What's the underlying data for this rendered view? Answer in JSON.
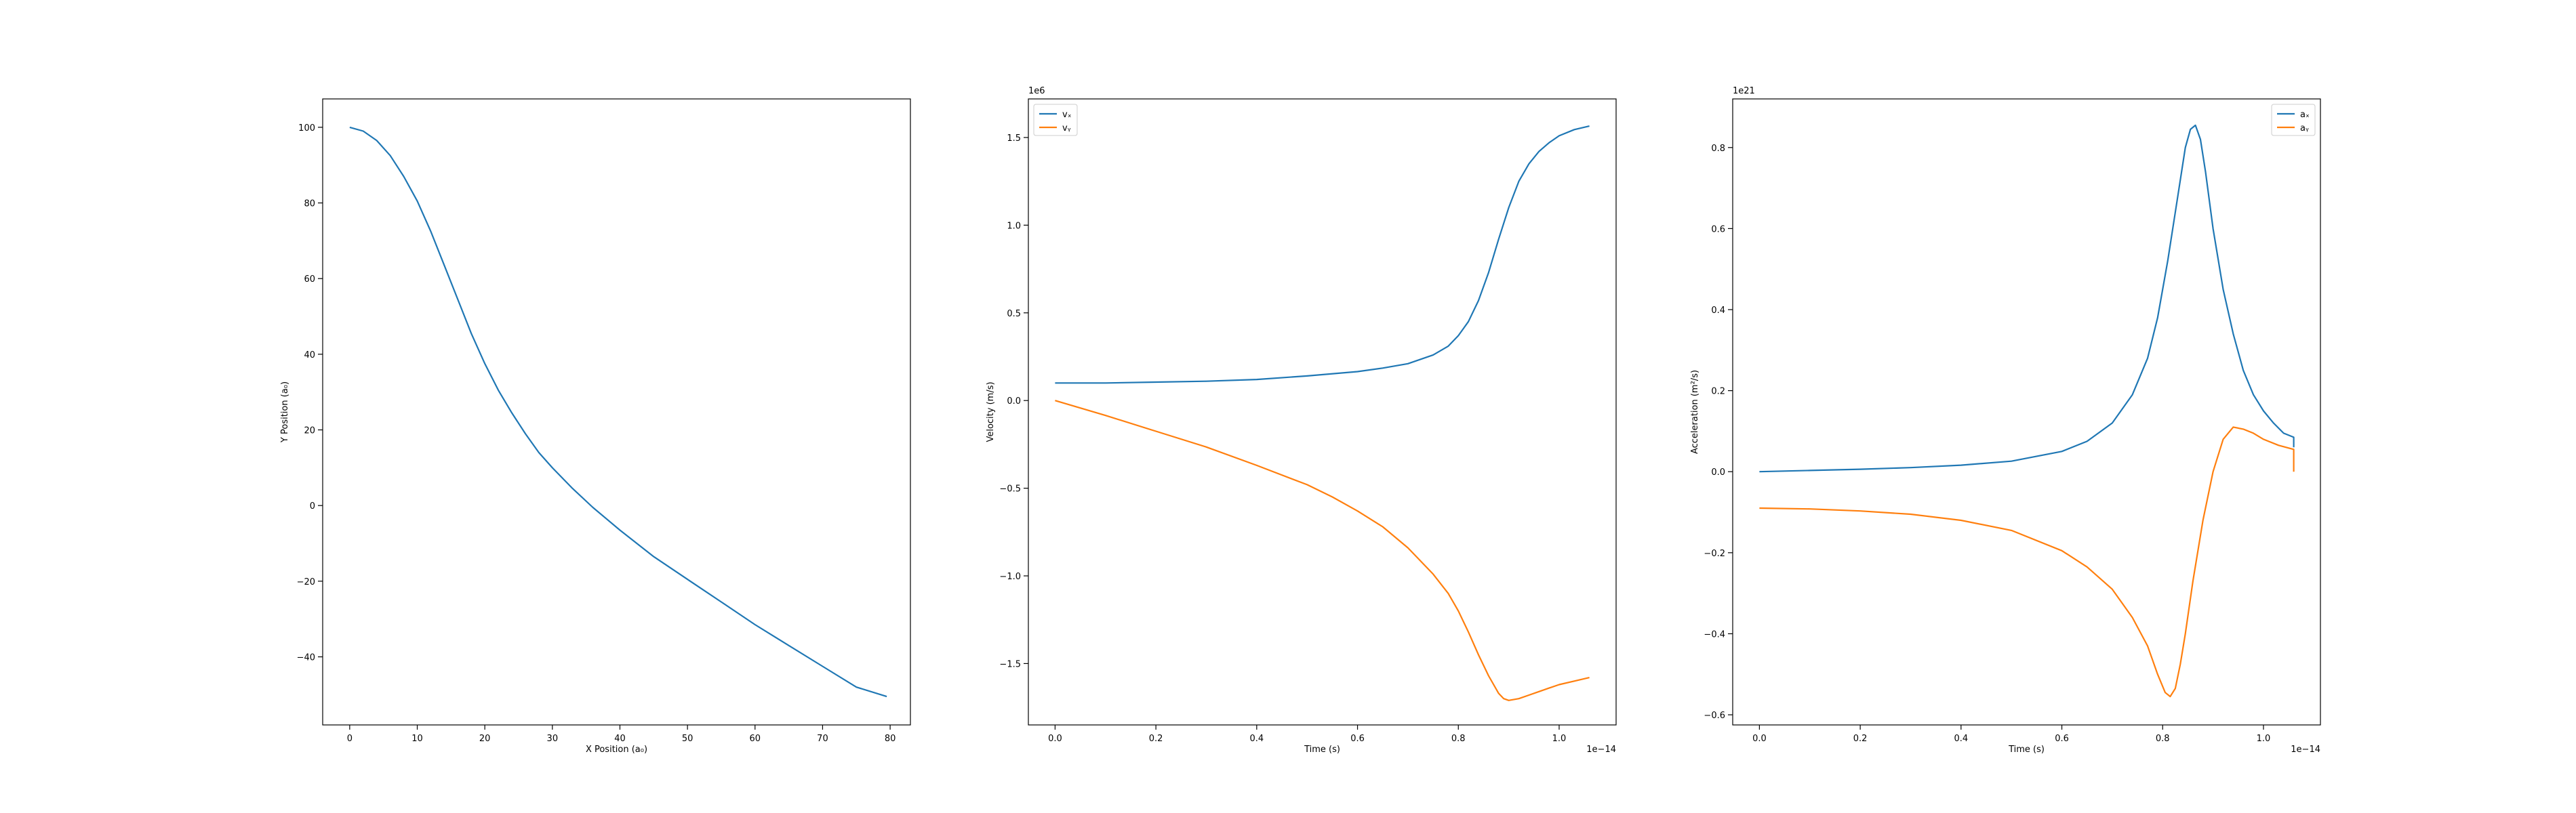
{
  "figure": {
    "background": "#ffffff"
  },
  "colors": {
    "blue": "#1f77b4",
    "orange": "#ff7f0e",
    "axis": "#000000"
  },
  "chart_data": [
    {
      "type": "line",
      "xlabel": "X Position (a₀)",
      "ylabel": "Y Position (a₀)",
      "xlim": [
        -4,
        83
      ],
      "ylim": [
        -58,
        107.5
      ],
      "xticks": [
        0,
        10,
        20,
        30,
        40,
        50,
        60,
        70,
        80
      ],
      "yticks": [
        -40,
        -20,
        0,
        20,
        40,
        60,
        80,
        100
      ],
      "xtick_labels": [
        "0",
        "10",
        "20",
        "30",
        "40",
        "50",
        "60",
        "70",
        "80"
      ],
      "ytick_labels": [
        "−40",
        "−20",
        "0",
        "20",
        "40",
        "60",
        "80",
        "100"
      ],
      "x_offset": "",
      "y_offset": "",
      "legend": [],
      "series": [
        {
          "color": "#1f77b4",
          "x": [
            0.0,
            2.0,
            4.0,
            6.0,
            8.0,
            10.0,
            12.0,
            14.0,
            16.0,
            18.0,
            20.0,
            22.0,
            24.0,
            26.0,
            28.0,
            30.0,
            33.0,
            36.0,
            40.0,
            45.0,
            50.0,
            55.0,
            60.0,
            65.0,
            70.0,
            75.0,
            79.5
          ],
          "y": [
            100.0,
            99.0,
            96.5,
            92.5,
            87.0,
            80.5,
            72.5,
            63.5,
            54.5,
            45.5,
            37.5,
            30.5,
            24.5,
            19.0,
            14.0,
            10.0,
            4.5,
            -0.5,
            -6.5,
            -13.5,
            -19.5,
            -25.5,
            -31.5,
            -37.0,
            -42.5,
            -48.0,
            -50.5
          ]
        }
      ]
    },
    {
      "type": "line",
      "xlabel": "Time (s)",
      "ylabel": "Velocity (m/s)",
      "xlim": [
        -0.053,
        1.113
      ],
      "ylim": [
        -1.85,
        1.72
      ],
      "xticks": [
        0.0,
        0.2,
        0.4,
        0.6,
        0.8,
        1.0
      ],
      "yticks": [
        -1.5,
        -1.0,
        -0.5,
        0.0,
        0.5,
        1.0,
        1.5
      ],
      "xtick_labels": [
        "0.0",
        "0.2",
        "0.4",
        "0.6",
        "0.8",
        "1.0"
      ],
      "ytick_labels": [
        "−1.5",
        "−1.0",
        "−0.5",
        "0.0",
        "0.5",
        "1.0",
        "1.5"
      ],
      "x_offset": "1e−14",
      "y_offset": "1e6",
      "legend": [
        "vₓ",
        "vᵧ"
      ],
      "series": [
        {
          "name": "vₓ",
          "color": "#1f77b4",
          "x": [
            0.0,
            0.1,
            0.2,
            0.3,
            0.4,
            0.5,
            0.6,
            0.65,
            0.7,
            0.75,
            0.78,
            0.8,
            0.82,
            0.84,
            0.86,
            0.88,
            0.9,
            0.92,
            0.94,
            0.96,
            0.98,
            1.0,
            1.03,
            1.06
          ],
          "y": [
            0.1,
            0.1,
            0.105,
            0.11,
            0.12,
            0.14,
            0.165,
            0.185,
            0.21,
            0.26,
            0.31,
            0.37,
            0.45,
            0.57,
            0.73,
            0.92,
            1.1,
            1.25,
            1.35,
            1.42,
            1.47,
            1.51,
            1.545,
            1.565
          ]
        },
        {
          "name": "vᵧ",
          "color": "#ff7f0e",
          "x": [
            0.0,
            0.1,
            0.2,
            0.3,
            0.4,
            0.5,
            0.55,
            0.6,
            0.65,
            0.7,
            0.75,
            0.78,
            0.8,
            0.82,
            0.84,
            0.86,
            0.88,
            0.89,
            0.9,
            0.92,
            0.94,
            0.96,
            0.98,
            1.0,
            1.03,
            1.06
          ],
          "y": [
            0.0,
            -0.085,
            -0.175,
            -0.265,
            -0.37,
            -0.48,
            -0.55,
            -0.63,
            -0.72,
            -0.84,
            -0.99,
            -1.1,
            -1.2,
            -1.32,
            -1.45,
            -1.57,
            -1.67,
            -1.7,
            -1.71,
            -1.7,
            -1.68,
            -1.66,
            -1.64,
            -1.62,
            -1.6,
            -1.58
          ]
        }
      ]
    },
    {
      "type": "line",
      "xlabel": "Time (s)",
      "ylabel": "Acceleration (m²/s)",
      "xlim": [
        -0.053,
        1.113
      ],
      "ylim": [
        -0.625,
        0.92
      ],
      "xticks": [
        0.0,
        0.2,
        0.4,
        0.6,
        0.8,
        1.0
      ],
      "yticks": [
        -0.6,
        -0.4,
        -0.2,
        0.0,
        0.2,
        0.4,
        0.6,
        0.8
      ],
      "xtick_labels": [
        "0.0",
        "0.2",
        "0.4",
        "0.6",
        "0.8",
        "1.0"
      ],
      "ytick_labels": [
        "−0.6",
        "−0.4",
        "−0.2",
        "0.0",
        "0.2",
        "0.4",
        "0.6",
        "0.8"
      ],
      "x_offset": "1e−14",
      "y_offset": "1e21",
      "legend": [
        "aₓ",
        "aᵧ"
      ],
      "series": [
        {
          "name": "aₓ",
          "color": "#1f77b4",
          "x": [
            0.0,
            0.1,
            0.2,
            0.3,
            0.4,
            0.5,
            0.6,
            0.65,
            0.7,
            0.74,
            0.77,
            0.79,
            0.81,
            0.83,
            0.845,
            0.855,
            0.865,
            0.875,
            0.885,
            0.9,
            0.92,
            0.94,
            0.96,
            0.98,
            1.0,
            1.02,
            1.04,
            1.06,
            1.06
          ],
          "y": [
            0.0,
            0.003,
            0.006,
            0.01,
            0.016,
            0.026,
            0.05,
            0.075,
            0.12,
            0.19,
            0.28,
            0.38,
            0.52,
            0.68,
            0.8,
            0.845,
            0.855,
            0.82,
            0.74,
            0.6,
            0.45,
            0.34,
            0.25,
            0.19,
            0.15,
            0.12,
            0.095,
            0.085,
            0.06
          ]
        },
        {
          "name": "aᵧ",
          "color": "#ff7f0e",
          "x": [
            0.0,
            0.1,
            0.2,
            0.3,
            0.4,
            0.5,
            0.6,
            0.65,
            0.7,
            0.74,
            0.77,
            0.79,
            0.805,
            0.815,
            0.825,
            0.835,
            0.845,
            0.86,
            0.88,
            0.9,
            0.92,
            0.94,
            0.96,
            0.98,
            1.0,
            1.03,
            1.06,
            1.06
          ],
          "y": [
            -0.09,
            -0.092,
            -0.097,
            -0.105,
            -0.12,
            -0.145,
            -0.195,
            -0.235,
            -0.29,
            -0.36,
            -0.43,
            -0.5,
            -0.545,
            -0.555,
            -0.535,
            -0.475,
            -0.4,
            -0.27,
            -0.12,
            0.0,
            0.08,
            0.11,
            0.105,
            0.095,
            0.08,
            0.065,
            0.055,
            0.0
          ]
        }
      ]
    }
  ]
}
